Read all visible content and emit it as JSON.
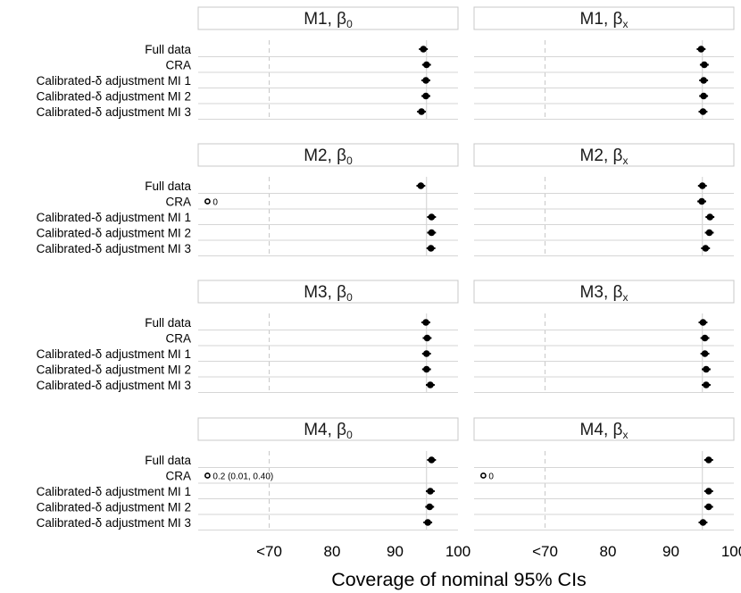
{
  "chart_data": {
    "type": "forest",
    "xlabel": "Coverage of nominal 95% CIs",
    "x_axis": {
      "range": [
        60,
        100
      ],
      "ticks": [
        70,
        80,
        90,
        100
      ],
      "tick_labels": [
        "<70",
        "80",
        "90",
        "100"
      ]
    },
    "reference_lines": {
      "dashed": 70,
      "solid": 95
    },
    "row_labels": [
      "Full data",
      "CRA",
      "Calibrated-δ adjustment MI 1",
      "Calibrated-δ adjustment MI 2",
      "Calibrated-δ adjustment MI 3"
    ],
    "panels": [
      {
        "model": "M1",
        "param": "β",
        "sub": "0",
        "points": [
          {
            "v": 94.5,
            "lo": 93.8,
            "hi": 95.2
          },
          {
            "v": 95.0,
            "lo": 94.3,
            "hi": 95.7
          },
          {
            "v": 94.9,
            "lo": 94.2,
            "hi": 95.6
          },
          {
            "v": 94.9,
            "lo": 94.2,
            "hi": 95.6
          },
          {
            "v": 94.2,
            "lo": 93.5,
            "hi": 94.9
          }
        ]
      },
      {
        "model": "M1",
        "param": "β",
        "sub": "x",
        "points": [
          {
            "v": 94.8,
            "lo": 94.1,
            "hi": 95.5
          },
          {
            "v": 95.3,
            "lo": 94.6,
            "hi": 96.0
          },
          {
            "v": 95.2,
            "lo": 94.5,
            "hi": 95.9
          },
          {
            "v": 95.2,
            "lo": 94.5,
            "hi": 95.9
          },
          {
            "v": 95.1,
            "lo": 94.4,
            "hi": 95.8
          }
        ]
      },
      {
        "model": "M2",
        "param": "β",
        "sub": "0",
        "points": [
          {
            "v": 94.1,
            "lo": 93.4,
            "hi": 94.8
          },
          {
            "v": 60.2,
            "lo": 60.2,
            "hi": 60.2,
            "open": true,
            "label": "0"
          },
          {
            "v": 95.8,
            "lo": 95.1,
            "hi": 96.5
          },
          {
            "v": 95.8,
            "lo": 95.1,
            "hi": 96.5
          },
          {
            "v": 95.7,
            "lo": 95.0,
            "hi": 96.4
          }
        ]
      },
      {
        "model": "M2",
        "param": "β",
        "sub": "x",
        "points": [
          {
            "v": 95.0,
            "lo": 94.3,
            "hi": 95.7
          },
          {
            "v": 94.9,
            "lo": 94.2,
            "hi": 95.6
          },
          {
            "v": 96.2,
            "lo": 95.5,
            "hi": 96.9
          },
          {
            "v": 96.1,
            "lo": 95.4,
            "hi": 96.8
          },
          {
            "v": 95.5,
            "lo": 94.8,
            "hi": 96.2
          }
        ]
      },
      {
        "model": "M3",
        "param": "β",
        "sub": "0",
        "points": [
          {
            "v": 94.9,
            "lo": 94.2,
            "hi": 95.6
          },
          {
            "v": 95.1,
            "lo": 94.4,
            "hi": 95.8
          },
          {
            "v": 95.0,
            "lo": 94.3,
            "hi": 95.7
          },
          {
            "v": 95.0,
            "lo": 94.3,
            "hi": 95.7
          },
          {
            "v": 95.6,
            "lo": 94.9,
            "hi": 96.3
          }
        ]
      },
      {
        "model": "M3",
        "param": "β",
        "sub": "x",
        "points": [
          {
            "v": 95.1,
            "lo": 94.4,
            "hi": 95.8
          },
          {
            "v": 95.4,
            "lo": 94.7,
            "hi": 96.1
          },
          {
            "v": 95.4,
            "lo": 94.7,
            "hi": 96.1
          },
          {
            "v": 95.6,
            "lo": 94.9,
            "hi": 96.3
          },
          {
            "v": 95.6,
            "lo": 94.9,
            "hi": 96.3
          }
        ]
      },
      {
        "model": "M4",
        "param": "β",
        "sub": "0",
        "points": [
          {
            "v": 95.8,
            "lo": 95.1,
            "hi": 96.5
          },
          {
            "v": 60.2,
            "lo": 60.2,
            "hi": 60.2,
            "open": true,
            "label": "0.2 (0.01, 0.40)"
          },
          {
            "v": 95.6,
            "lo": 94.9,
            "hi": 96.3
          },
          {
            "v": 95.5,
            "lo": 94.8,
            "hi": 96.2
          },
          {
            "v": 95.2,
            "lo": 94.5,
            "hi": 95.9
          }
        ]
      },
      {
        "model": "M4",
        "param": "β",
        "sub": "x",
        "points": [
          {
            "v": 96.0,
            "lo": 95.3,
            "hi": 96.7
          },
          {
            "v": 60.2,
            "lo": 60.2,
            "hi": 60.2,
            "open": true,
            "label": "0"
          },
          {
            "v": 96.0,
            "lo": 95.3,
            "hi": 96.7
          },
          {
            "v": 96.0,
            "lo": 95.3,
            "hi": 96.7
          },
          {
            "v": 95.1,
            "lo": 94.4,
            "hi": 95.8
          }
        ]
      }
    ]
  }
}
